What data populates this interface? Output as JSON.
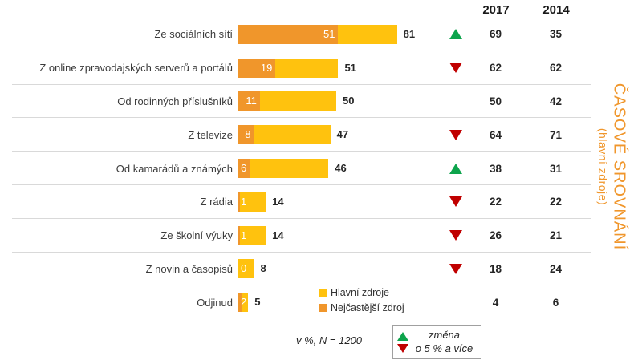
{
  "header": {
    "col_2017": "2017",
    "col_2014": "2014"
  },
  "side_title": {
    "line1": "ČASOVÉ SROVNÁNÍ",
    "line2": "(hlavní zdroje)"
  },
  "note": "v %, N = 1200",
  "change_legend": {
    "line1": "změna",
    "line2": "o 5 % a více"
  },
  "series_legend": {
    "main_label": "Hlavní zdroje",
    "frequent_label": "Nejčastější zdroj"
  },
  "colors": {
    "main_bar": "#FFC20E",
    "frequent_bar": "#F0962B",
    "up_arrow": "#0DA44C",
    "down_arrow": "#C00000",
    "side_title": "#F0962B"
  },
  "chart_data": {
    "type": "bar",
    "orientation": "horizontal",
    "title": "ČASOVÉ SROVNÁNÍ (hlavní zdroje)",
    "unit_note": "v %, N = 1200",
    "xlim": [
      0,
      100
    ],
    "grid": false,
    "legend_position": "bottom",
    "categories": [
      "Ze sociálních sítí",
      "Z online zpravodajských serverů a portálů",
      "Od rodinných příslušníků",
      "Z televize",
      "Od kamarádů a známých",
      "Z rádia",
      "Ze školní výuky",
      "Z novin a časopisů",
      "Odjinud"
    ],
    "series": [
      {
        "name": "Hlavní zdroje",
        "values": [
          81,
          51,
          50,
          47,
          46,
          14,
          14,
          8,
          5
        ]
      },
      {
        "name": "Nejčastější zdroj",
        "values": [
          51,
          19,
          11,
          8,
          6,
          1,
          1,
          0,
          2
        ]
      }
    ],
    "columns": {
      "2017": [
        69,
        62,
        50,
        64,
        38,
        22,
        26,
        18,
        4
      ],
      "2014": [
        35,
        62,
        42,
        71,
        31,
        22,
        21,
        24,
        6
      ]
    },
    "change_arrows": [
      "up",
      "down",
      "none",
      "down",
      "up",
      "down",
      "down",
      "down",
      "none"
    ]
  }
}
